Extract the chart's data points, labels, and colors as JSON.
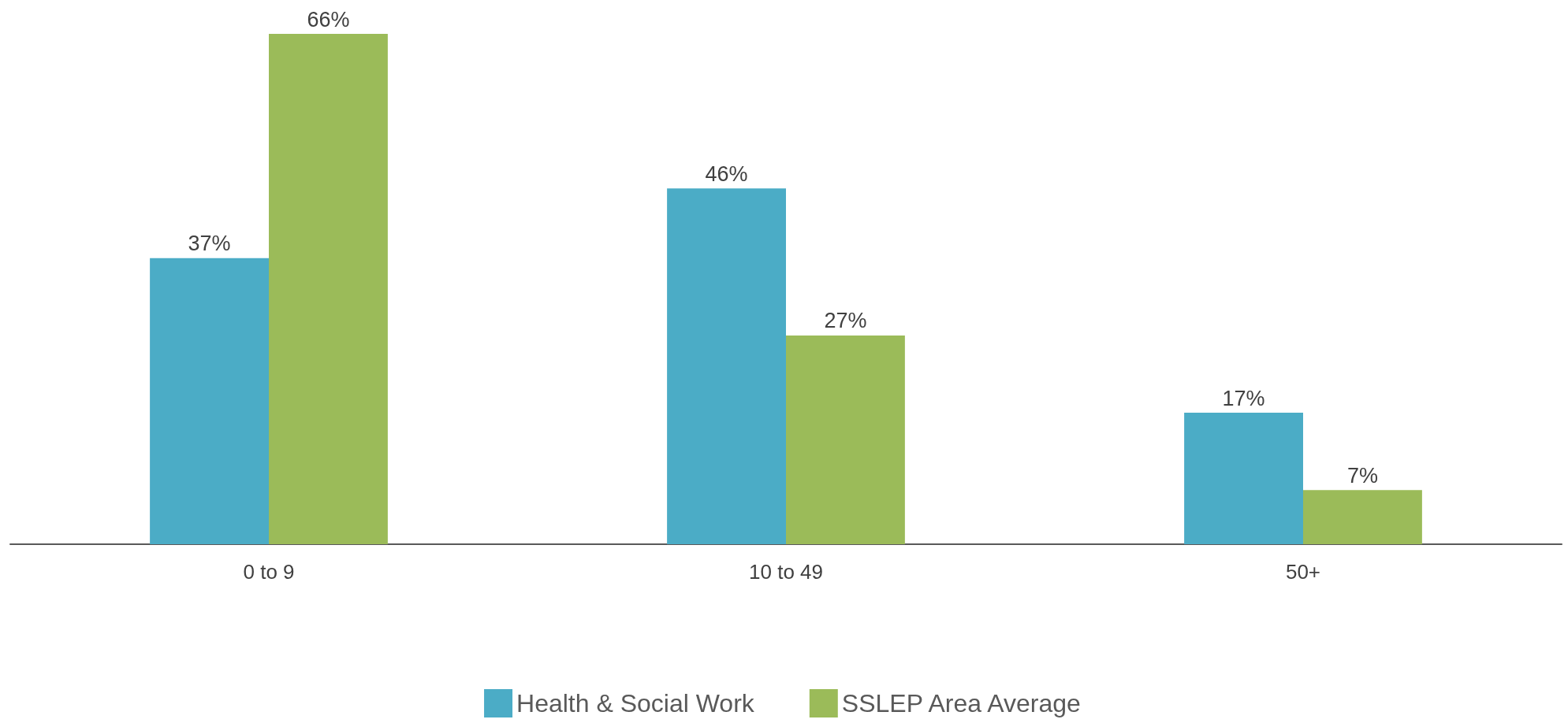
{
  "chart_data": {
    "type": "bar",
    "categories": [
      "0 to 9",
      "10 to 49",
      "50+"
    ],
    "series": [
      {
        "name": "Health & Social Work",
        "color": "#4bacc6",
        "values": [
          37,
          46,
          17
        ],
        "value_labels": [
          "37%",
          "46%",
          "17%"
        ]
      },
      {
        "name": "SSLEP Area Average",
        "color": "#9bbb59",
        "values": [
          66,
          27,
          7
        ],
        "value_labels": [
          "66%",
          "27%",
          "7%"
        ]
      }
    ],
    "legend": "bottom"
  }
}
